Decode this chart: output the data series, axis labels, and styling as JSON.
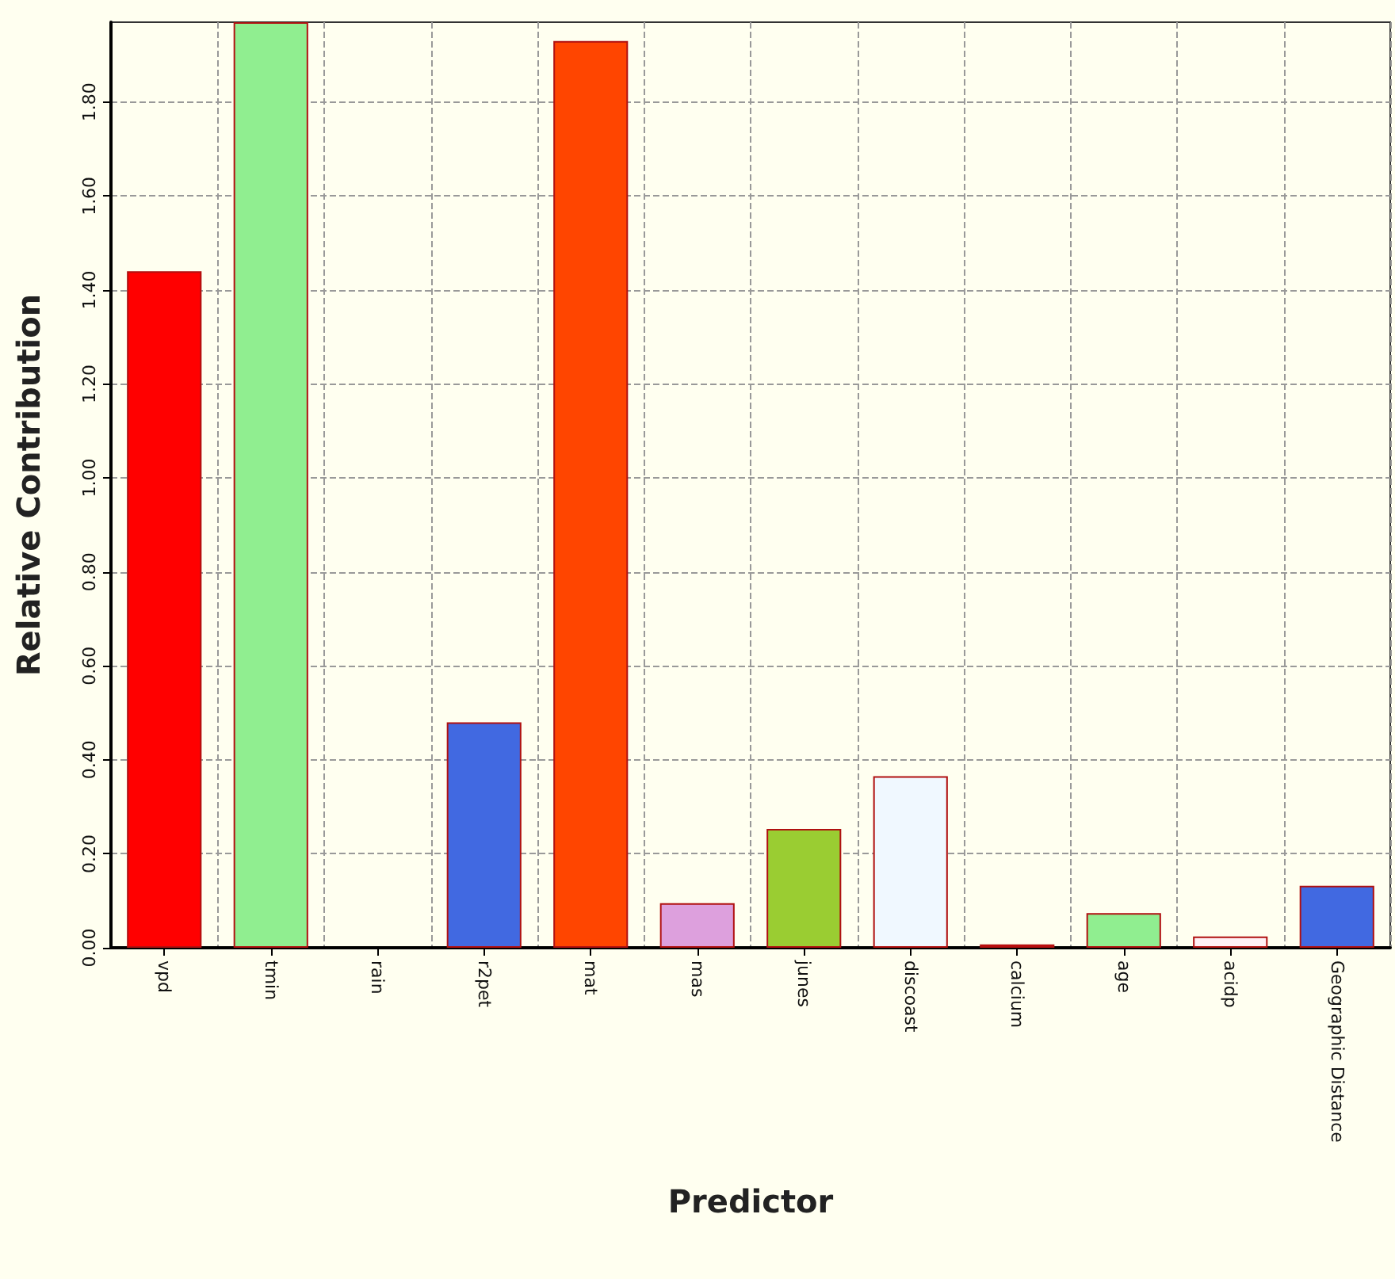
{
  "chart_data": {
    "type": "bar",
    "xlabel": "Predictor",
    "ylabel": "Relative Contribution",
    "categories": [
      "vpd",
      "tmin",
      "rain",
      "r2pet",
      "mat",
      "mas",
      "junes",
      "discoast",
      "calcium",
      "age",
      "acidp",
      "Geographic Distance"
    ],
    "values": [
      1.44,
      1.97,
      0,
      0.48,
      1.93,
      0.095,
      0.253,
      0.365,
      0.007,
      0.074,
      0.024,
      0.132
    ],
    "colors": [
      "#ff0000",
      "#90ee90",
      "#ffffff",
      "#4169e1",
      "#ff4500",
      "#dda0dd",
      "#9acd32",
      "#f0f8ff",
      "#ff0000",
      "#90ee90",
      "#fff0f5",
      "#4169e1"
    ],
    "ylim": [
      0,
      1.97
    ],
    "yticks": [
      {
        "value": 0,
        "label": "0.00"
      },
      {
        "value": 0.2,
        "label": "0.20"
      },
      {
        "value": 0.4,
        "label": "0.40"
      },
      {
        "value": 0.6,
        "label": "0.60"
      },
      {
        "value": 0.8,
        "label": "0.80"
      },
      {
        "value": 1,
        "label": "1.00"
      },
      {
        "value": 1.2,
        "label": "1.20"
      },
      {
        "value": 1.4,
        "label": "1.40"
      },
      {
        "value": 1.6,
        "label": "1.60"
      },
      {
        "value": 1.8,
        "label": "1.80"
      }
    ],
    "grid": true
  }
}
